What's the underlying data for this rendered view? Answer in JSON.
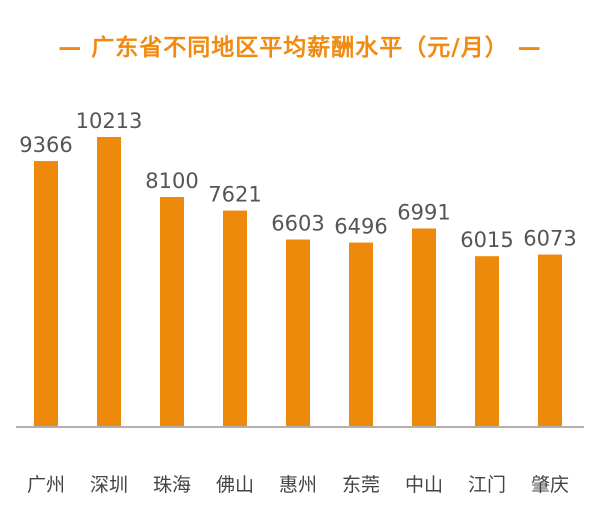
{
  "chart_data": {
    "type": "bar",
    "title": "— 广东省不同地区平均薪酬水平（元/月） —",
    "categories": [
      "广州",
      "深圳",
      "珠海",
      "佛山",
      "惠州",
      "东莞",
      "中山",
      "江门",
      "肇庆"
    ],
    "values": [
      9366,
      10213,
      8100,
      7621,
      6603,
      6496,
      6991,
      6015,
      6073
    ],
    "ylim": [
      0,
      10213
    ],
    "grid": false,
    "legend": "none",
    "bar_color": "#ee8a0b",
    "axis_color": "#b0b0b0"
  }
}
